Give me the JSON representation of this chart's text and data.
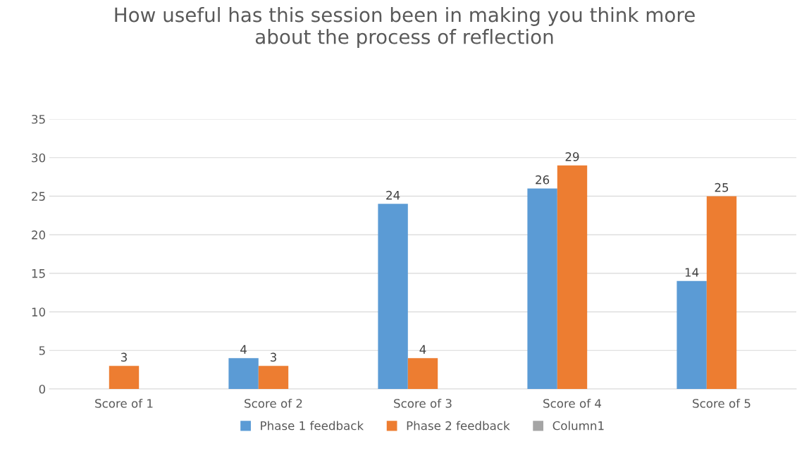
{
  "chart_data": {
    "type": "bar",
    "title": "How useful has this session been in making you think more\nabout the process of reflection",
    "categories": [
      "Score of 1",
      "Score of 2",
      "Score of 3",
      "Score of 4",
      "Score of 5"
    ],
    "series": [
      {
        "name": "Phase 1 feedback",
        "color": "#5b9bd5",
        "values": [
          null,
          4,
          24,
          26,
          14
        ]
      },
      {
        "name": "Phase 2 feedback",
        "color": "#ed7d31",
        "values": [
          3,
          3,
          4,
          29,
          25
        ]
      },
      {
        "name": "Column1",
        "color": "#a5a5a5",
        "values": [
          null,
          null,
          null,
          null,
          null
        ]
      }
    ],
    "ylim": [
      0,
      35
    ],
    "yticks": [
      0,
      5,
      10,
      15,
      20,
      25,
      30,
      35
    ],
    "grid": "y",
    "legend": "bottom",
    "data_labels": true
  }
}
